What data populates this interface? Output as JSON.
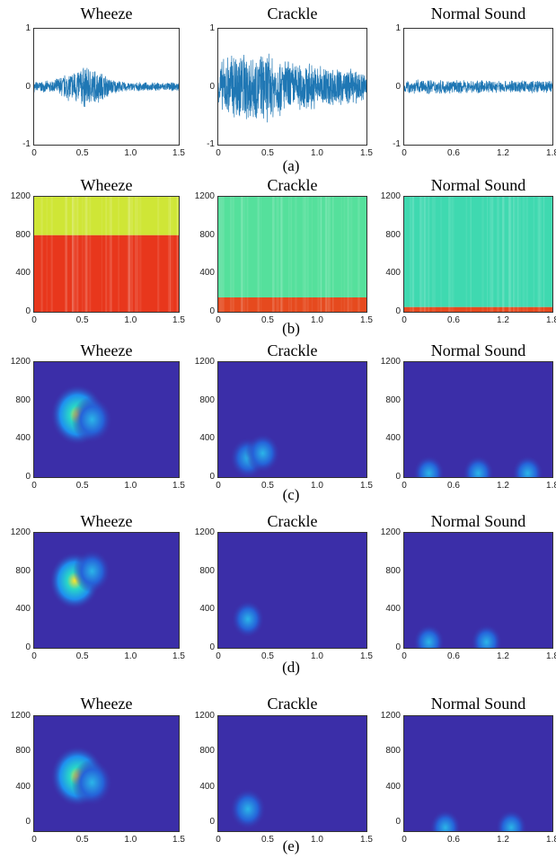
{
  "figure": {
    "row_labels": [
      "(a)",
      "(b)",
      "(c)",
      "(d)",
      "(e)"
    ]
  },
  "chart_data": [
    {
      "type": "line",
      "row": "(a)",
      "title": "Wheeze",
      "x_ticks": [
        "0",
        "0.5",
        "1.0",
        "1.5"
      ],
      "y_ticks": [
        "1",
        "0",
        "-1"
      ],
      "xlim": [
        0,
        1.5
      ],
      "ylim": [
        -1,
        1
      ],
      "envelope": {
        "x": [
          0,
          0.1,
          0.2,
          0.3,
          0.4,
          0.5,
          0.6,
          0.7,
          0.8,
          0.9,
          1.0,
          1.1,
          1.2,
          1.3,
          1.4,
          1.5
        ],
        "amplitude": [
          0.1,
          0.1,
          0.12,
          0.22,
          0.3,
          0.4,
          0.35,
          0.28,
          0.15,
          0.1,
          0.08,
          0.08,
          0.08,
          0.08,
          0.08,
          0.08
        ]
      },
      "color": "#1f77b4"
    },
    {
      "type": "line",
      "row": "(a)",
      "title": "Crackle",
      "x_ticks": [
        "0",
        "0.5",
        "1.0",
        "1.5"
      ],
      "y_ticks": [
        "1",
        "0",
        "-1"
      ],
      "xlim": [
        0,
        1.5
      ],
      "ylim": [
        -1,
        1
      ],
      "envelope": {
        "x": [
          0,
          0.1,
          0.2,
          0.3,
          0.4,
          0.5,
          0.6,
          0.7,
          0.8,
          0.9,
          1.0,
          1.1,
          1.2,
          1.3,
          1.4,
          1.5
        ],
        "amplitude": [
          0.4,
          0.6,
          0.7,
          0.65,
          0.6,
          0.65,
          0.55,
          0.5,
          0.45,
          0.45,
          0.4,
          0.4,
          0.35,
          0.35,
          0.3,
          0.3
        ]
      },
      "color": "#1f77b4"
    },
    {
      "type": "line",
      "row": "(a)",
      "title": "Normal Sound",
      "x_ticks": [
        "0",
        "0.6",
        "1.2",
        "1.8"
      ],
      "y_ticks": [
        "1",
        "0",
        "-1"
      ],
      "xlim": [
        0,
        1.8
      ],
      "ylim": [
        -1,
        1
      ],
      "envelope": {
        "x": [
          0,
          0.3,
          0.6,
          0.9,
          1.2,
          1.5,
          1.8
        ],
        "amplitude": [
          0.12,
          0.14,
          0.12,
          0.12,
          0.12,
          0.12,
          0.12
        ]
      },
      "color": "#1f77b4"
    },
    {
      "type": "heatmap",
      "row": "(b)",
      "title": "Wheeze",
      "x_ticks": [
        "0",
        "0.5",
        "1.0",
        "1.5"
      ],
      "y_ticks": [
        "1200",
        "800",
        "400",
        "0"
      ],
      "xlim": [
        0,
        1.5
      ],
      "ylim": [
        0,
        1200
      ],
      "bands": [
        {
          "from": 0,
          "to": 800,
          "color": "#e8371c"
        },
        {
          "from": 800,
          "to": 1200,
          "color": "#cfe636"
        }
      ]
    },
    {
      "type": "heatmap",
      "row": "(b)",
      "title": "Crackle",
      "x_ticks": [
        "0",
        "0.5",
        "1.0",
        "1.5"
      ],
      "y_ticks": [
        "1200",
        "800",
        "400",
        "0"
      ],
      "xlim": [
        0,
        1.5
      ],
      "ylim": [
        0,
        1200
      ],
      "bands": [
        {
          "from": 0,
          "to": 150,
          "color": "#e64a1e"
        },
        {
          "from": 150,
          "to": 1200,
          "color": "#55e09c"
        }
      ]
    },
    {
      "type": "heatmap",
      "row": "(b)",
      "title": "Normal Sound",
      "x_ticks": [
        "0",
        "0.6",
        "1.2",
        "1.8"
      ],
      "y_ticks": [
        "1200",
        "800",
        "400",
        "0"
      ],
      "xlim": [
        0,
        1.8
      ],
      "ylim": [
        0,
        1200
      ],
      "bands": [
        {
          "from": 0,
          "to": 50,
          "color": "#e64a1e"
        },
        {
          "from": 50,
          "to": 1200,
          "color": "#3fd9b0"
        }
      ]
    },
    {
      "type": "heatmap",
      "row": "(c)",
      "title": "Wheeze",
      "x_ticks": [
        "0",
        "0.5",
        "1.0",
        "1.5"
      ],
      "y_ticks": [
        "1200",
        "800",
        "400",
        "0"
      ],
      "xlim": [
        0,
        1.5
      ],
      "ylim": [
        0,
        1200
      ],
      "hotspots": [
        {
          "x": 0.45,
          "y": 650,
          "intensity": 1.0
        },
        {
          "x": 0.6,
          "y": 600,
          "intensity": 0.6
        }
      ]
    },
    {
      "type": "heatmap",
      "row": "(c)",
      "title": "Crackle",
      "x_ticks": [
        "0",
        "0.5",
        "1.0",
        "1.5"
      ],
      "y_ticks": [
        "1200",
        "800",
        "400",
        "0"
      ],
      "xlim": [
        0,
        1.5
      ],
      "ylim": [
        0,
        1200
      ],
      "hotspots": [
        {
          "x": 0.3,
          "y": 200,
          "intensity": 0.45
        },
        {
          "x": 0.45,
          "y": 250,
          "intensity": 0.4
        }
      ]
    },
    {
      "type": "heatmap",
      "row": "(c)",
      "title": "Normal Sound",
      "x_ticks": [
        "0",
        "0.6",
        "1.2",
        "1.8"
      ],
      "y_ticks": [
        "1200",
        "800",
        "400",
        "0"
      ],
      "xlim": [
        0,
        1.8
      ],
      "ylim": [
        0,
        1200
      ],
      "hotspots": [
        {
          "x": 0.3,
          "y": 40,
          "intensity": 0.3
        },
        {
          "x": 0.9,
          "y": 40,
          "intensity": 0.3
        },
        {
          "x": 1.5,
          "y": 40,
          "intensity": 0.3
        }
      ]
    },
    {
      "type": "heatmap",
      "row": "(d)",
      "title": "Wheeze",
      "x_ticks": [
        "0",
        "0.5",
        "1.0",
        "1.5"
      ],
      "y_ticks": [
        "1200",
        "800",
        "400",
        "0"
      ],
      "xlim": [
        0,
        1.5
      ],
      "ylim": [
        0,
        1200
      ],
      "hotspots": [
        {
          "x": 0.42,
          "y": 700,
          "intensity": 0.9
        },
        {
          "x": 0.6,
          "y": 800,
          "intensity": 0.5
        }
      ]
    },
    {
      "type": "heatmap",
      "row": "(d)",
      "title": "Crackle",
      "x_ticks": [
        "0",
        "0.5",
        "1.0",
        "1.5"
      ],
      "y_ticks": [
        "1200",
        "800",
        "400",
        "0"
      ],
      "xlim": [
        0,
        1.5
      ],
      "ylim": [
        0,
        1200
      ],
      "hotspots": [
        {
          "x": 0.3,
          "y": 300,
          "intensity": 0.35
        }
      ]
    },
    {
      "type": "heatmap",
      "row": "(d)",
      "title": "Normal Sound",
      "x_ticks": [
        "0",
        "0.6",
        "1.2",
        "1.8"
      ],
      "y_ticks": [
        "1200",
        "800",
        "400",
        "0"
      ],
      "xlim": [
        0,
        1.8
      ],
      "ylim": [
        0,
        1200
      ],
      "hotspots": [
        {
          "x": 0.3,
          "y": 60,
          "intensity": 0.3
        },
        {
          "x": 1.0,
          "y": 60,
          "intensity": 0.3
        }
      ]
    },
    {
      "type": "heatmap",
      "row": "(e)",
      "title": "Wheeze",
      "x_ticks": [
        "0",
        "0.5",
        "1.0",
        "1.5"
      ],
      "y_ticks": [
        "1200",
        "800",
        "400",
        "0"
      ],
      "xlim": [
        0,
        1.5
      ],
      "ylim": [
        -100,
        1200
      ],
      "hotspots": [
        {
          "x": 0.45,
          "y": 520,
          "intensity": 1.0
        },
        {
          "x": 0.6,
          "y": 450,
          "intensity": 0.6
        }
      ]
    },
    {
      "type": "heatmap",
      "row": "(e)",
      "title": "Crackle",
      "x_ticks": [
        "0",
        "0.5",
        "1.0",
        "1.5"
      ],
      "y_ticks": [
        "1200",
        "800",
        "400",
        "0"
      ],
      "xlim": [
        0,
        1.5
      ],
      "ylim": [
        -100,
        1200
      ],
      "hotspots": [
        {
          "x": 0.3,
          "y": 150,
          "intensity": 0.45
        }
      ]
    },
    {
      "type": "heatmap",
      "row": "(e)",
      "title": "Normal Sound",
      "x_ticks": [
        "0",
        "0.6",
        "1.2",
        "1.8"
      ],
      "y_ticks": [
        "1200",
        "800",
        "400",
        "0"
      ],
      "xlim": [
        0,
        1.8
      ],
      "ylim": [
        -100,
        1200
      ],
      "hotspots": [
        {
          "x": 0.5,
          "y": -60,
          "intensity": 0.3
        },
        {
          "x": 1.3,
          "y": -60,
          "intensity": 0.3
        }
      ]
    }
  ]
}
